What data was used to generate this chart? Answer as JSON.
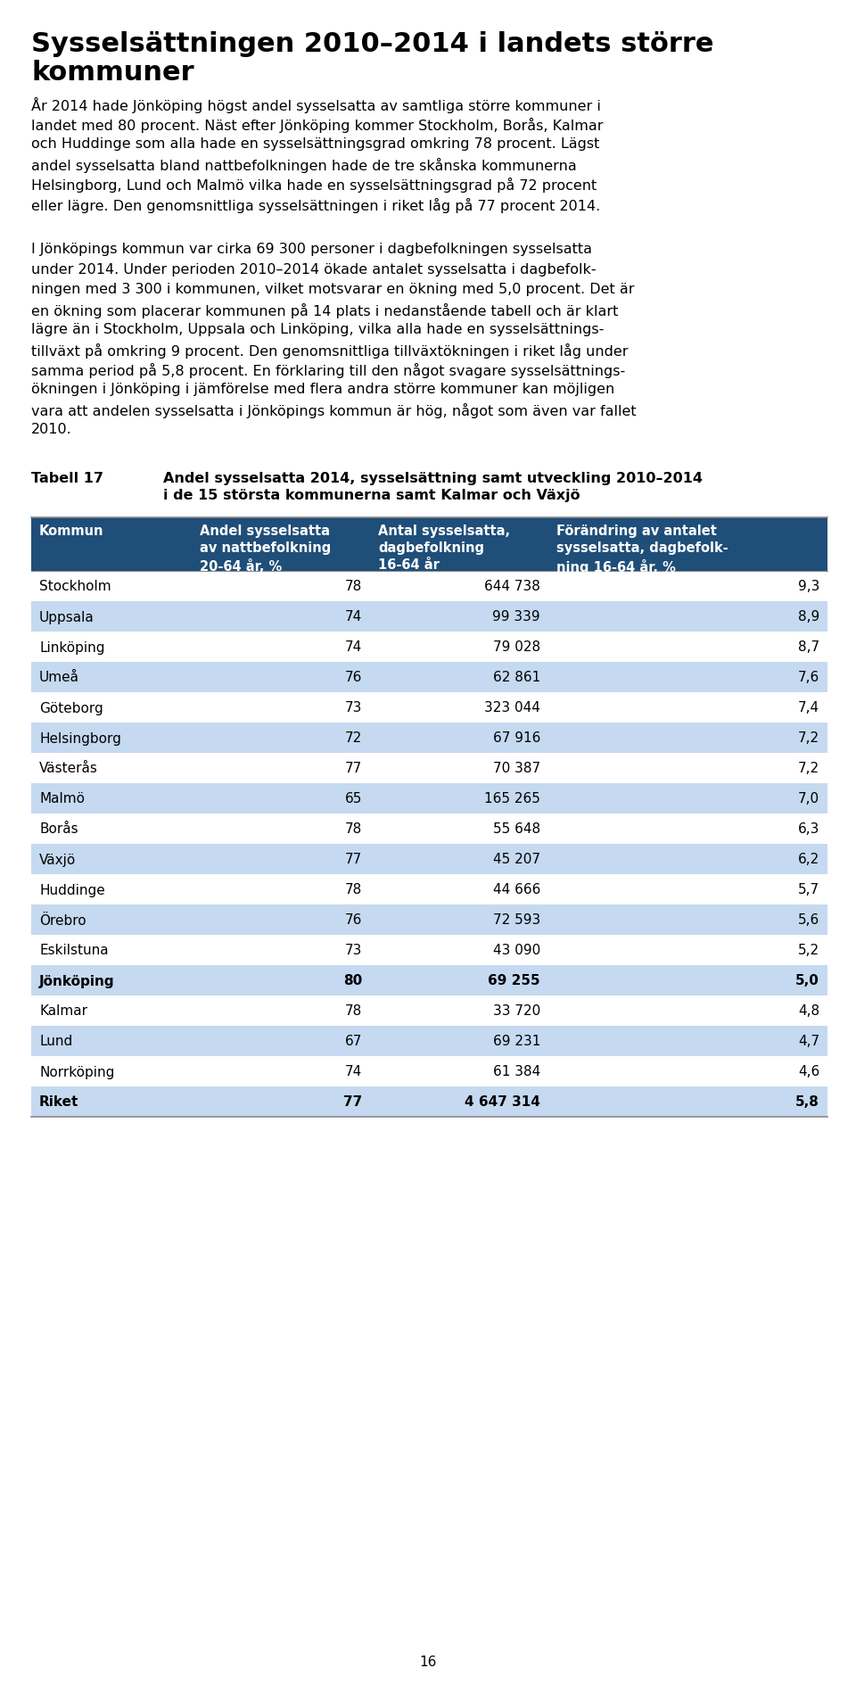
{
  "title_line1": "Sysselsättningen 2010–2014 i landets större",
  "title_line2": "kommuner",
  "paragraph1_lines": [
    "År 2014 hade Jönköping högst andel sysselsatta av samtliga större kommuner i",
    "landet med 80 procent. Näst efter Jönköping kommer Stockholm, Borås, Kalmar",
    "och Huddinge som alla hade en sysselsättningsgrad omkring 78 procent. Lägst",
    "andel sysselsatta bland nattbefolkningen hade de tre skånska kommunerna",
    "Helsingborg, Lund och Malmö vilka hade en sysselsättningsgrad på 72 procent",
    "eller lägre. Den genomsnittliga sysselsättningen i riket låg på 77 procent 2014."
  ],
  "paragraph2_lines": [
    "I Jönköpings kommun var cirka 69 300 personer i dagbefolkningen sysselsatta",
    "under 2014. Under perioden 2010–2014 ökade antalet sysselsatta i dagbefolk-",
    "ningen med 3 300 i kommunen, vilket motsvarar en ökning med 5,0 procent. Det är",
    "en ökning som placerar kommunen på 14 plats i nedanstående tabell och är klart",
    "lägre än i Stockholm, Uppsala och Linköping, vilka alla hade en sysselsättnings-",
    "tillväxt på omkring 9 procent. Den genomsnittliga tillväxtökningen i riket låg under",
    "samma period på 5,8 procent. En förklaring till den något svagare sysselsättnings-",
    "ökningen i Jönköping i jämförelse med flera andra större kommuner kan möjligen",
    "vara att andelen sysselsatta i Jönköpings kommun är hög, något som även var fallet",
    "2010."
  ],
  "table_label": "Tabell 17",
  "table_title_line1": "Andel sysselsatta 2014, sysselsättning samt utveckling 2010–2014",
  "table_title_line2": "i de 15 största kommunerna samt Kalmar och Växjö",
  "col_headers": [
    "Kommun",
    "Andel sysselsatta\nav nattbefolkning\n20-64 år, %",
    "Antal sysselsatta,\ndagbefolkning\n16-64 år",
    "Förändring av antalet\nsysselsatta, dagbefolk-\nning 16-64 år, %"
  ],
  "rows": [
    {
      "name": "Stockholm",
      "c1": "78",
      "c2": "644 738",
      "c3": "9,3",
      "alt": false,
      "bold": false
    },
    {
      "name": "Uppsala",
      "c1": "74",
      "c2": "99 339",
      "c3": "8,9",
      "alt": true,
      "bold": false
    },
    {
      "name": "Linköping",
      "c1": "74",
      "c2": "79 028",
      "c3": "8,7",
      "alt": false,
      "bold": false
    },
    {
      "name": "Umeå",
      "c1": "76",
      "c2": "62 861",
      "c3": "7,6",
      "alt": true,
      "bold": false
    },
    {
      "name": "Göteborg",
      "c1": "73",
      "c2": "323 044",
      "c3": "7,4",
      "alt": false,
      "bold": false
    },
    {
      "name": "Helsingborg",
      "c1": "72",
      "c2": "67 916",
      "c3": "7,2",
      "alt": true,
      "bold": false
    },
    {
      "name": "Västerås",
      "c1": "77",
      "c2": "70 387",
      "c3": "7,2",
      "alt": false,
      "bold": false
    },
    {
      "name": "Malmö",
      "c1": "65",
      "c2": "165 265",
      "c3": "7,0",
      "alt": true,
      "bold": false
    },
    {
      "name": "Borås",
      "c1": "78",
      "c2": "55 648",
      "c3": "6,3",
      "alt": false,
      "bold": false
    },
    {
      "name": "Växjö",
      "c1": "77",
      "c2": "45 207",
      "c3": "6,2",
      "alt": true,
      "bold": false
    },
    {
      "name": "Huddinge",
      "c1": "78",
      "c2": "44 666",
      "c3": "5,7",
      "alt": false,
      "bold": false
    },
    {
      "name": "Örebro",
      "c1": "76",
      "c2": "72 593",
      "c3": "5,6",
      "alt": true,
      "bold": false
    },
    {
      "name": "Eskilstuna",
      "c1": "73",
      "c2": "43 090",
      "c3": "5,2",
      "alt": false,
      "bold": false
    },
    {
      "name": "Jönköping",
      "c1": "80",
      "c2": "69 255",
      "c3": "5,0",
      "alt": true,
      "bold": true
    },
    {
      "name": "Kalmar",
      "c1": "78",
      "c2": "33 720",
      "c3": "4,8",
      "alt": false,
      "bold": false
    },
    {
      "name": "Lund",
      "c1": "67",
      "c2": "69 231",
      "c3": "4,7",
      "alt": true,
      "bold": false
    },
    {
      "name": "Norrköping",
      "c1": "74",
      "c2": "61 384",
      "c3": "4,6",
      "alt": false,
      "bold": false
    },
    {
      "name": "Riket",
      "c1": "77",
      "c2": "4 647 314",
      "c3": "5,8",
      "alt": true,
      "bold": true
    }
  ],
  "header_bg": "#1F4E79",
  "alt_row_bg": "#C5D9F1",
  "white_row_bg": "#FFFFFF",
  "page_number": "16",
  "bg_color": "#FFFFFF",
  "title_fontsize": 22,
  "body_fontsize": 11.5,
  "table_label_fontsize": 11.5,
  "header_fontsize": 10.5,
  "row_fontsize": 11.0
}
